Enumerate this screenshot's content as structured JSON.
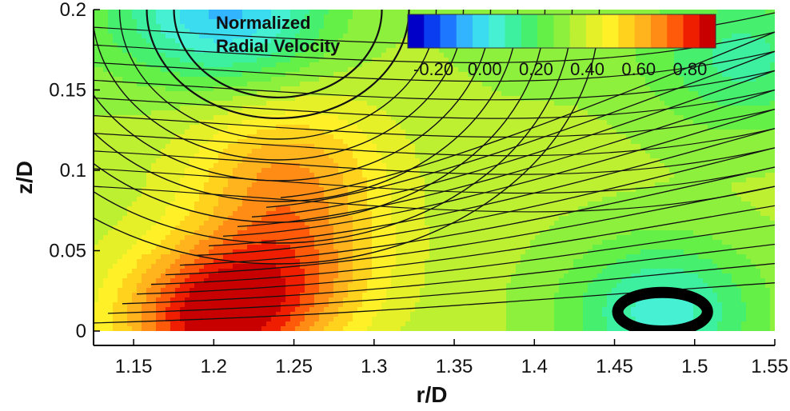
{
  "chart_data": {
    "type": "heatmap",
    "xlabel": "r/D",
    "ylabel": "z/D",
    "xlim": [
      1.125,
      1.55
    ],
    "ylim": [
      0,
      0.2
    ],
    "x_ticks": [
      "1.15",
      "1.2",
      "1.25",
      "1.3",
      "1.35",
      "1.4",
      "1.45",
      "1.5",
      "1.55"
    ],
    "x_tick_values": [
      1.15,
      1.2,
      1.25,
      1.3,
      1.35,
      1.4,
      1.45,
      1.5,
      1.55
    ],
    "y_ticks": [
      "0",
      "0.05",
      "0.1",
      "0.15",
      "0.2"
    ],
    "y_tick_values": [
      0,
      0.05,
      0.1,
      0.15,
      0.2
    ],
    "colorbar": {
      "title_lines": [
        "Normalized",
        "Radial Velocity"
      ],
      "range": [
        -0.3,
        0.9
      ],
      "tick_labels": [
        "-0.20",
        "0.00",
        "0.20",
        "0.40",
        "0.60",
        "0.80"
      ],
      "tick_values": [
        -0.2,
        0.0,
        0.2,
        0.4,
        0.6,
        0.8
      ],
      "colors": [
        "#0000c8",
        "#0a3cf0",
        "#1e78ff",
        "#32b4ff",
        "#3cdcf0",
        "#46f0d2",
        "#3cf0a0",
        "#46f06e",
        "#64f046",
        "#8cf03c",
        "#bef032",
        "#e6f028",
        "#fff028",
        "#ffd21e",
        "#ffb41e",
        "#ff8c14",
        "#ff5a0a",
        "#f01e00",
        "#c80000"
      ]
    },
    "field_hotspots": [
      {
        "r": 1.2,
        "z": 0.008,
        "value": 0.85
      },
      {
        "r": 1.245,
        "z": 0.1,
        "value": 0.62
      },
      {
        "r": 1.25,
        "z": 0.04,
        "value": 0.6
      },
      {
        "r": 1.21,
        "z": 0.2,
        "value": -0.05
      },
      {
        "r": 1.48,
        "z": 0.012,
        "value": 0.05
      },
      {
        "r": 1.53,
        "z": 0.17,
        "value": 0.12
      },
      {
        "r": 1.4,
        "z": 0.19,
        "value": 0.3
      },
      {
        "r": 1.13,
        "z": 0.19,
        "value": 0.28
      }
    ],
    "background_value": 0.35,
    "recirculation_region": {
      "center": [
        1.48,
        0.012
      ],
      "radius_r": 0.028,
      "radius_z": 0.01
    },
    "streamlines": "Flow streamlines with arrows, arcing upward from the lower-left and fanning out toward the upper-right; a closed recirculation loop near r/D=1.48, z/D=0.01"
  }
}
